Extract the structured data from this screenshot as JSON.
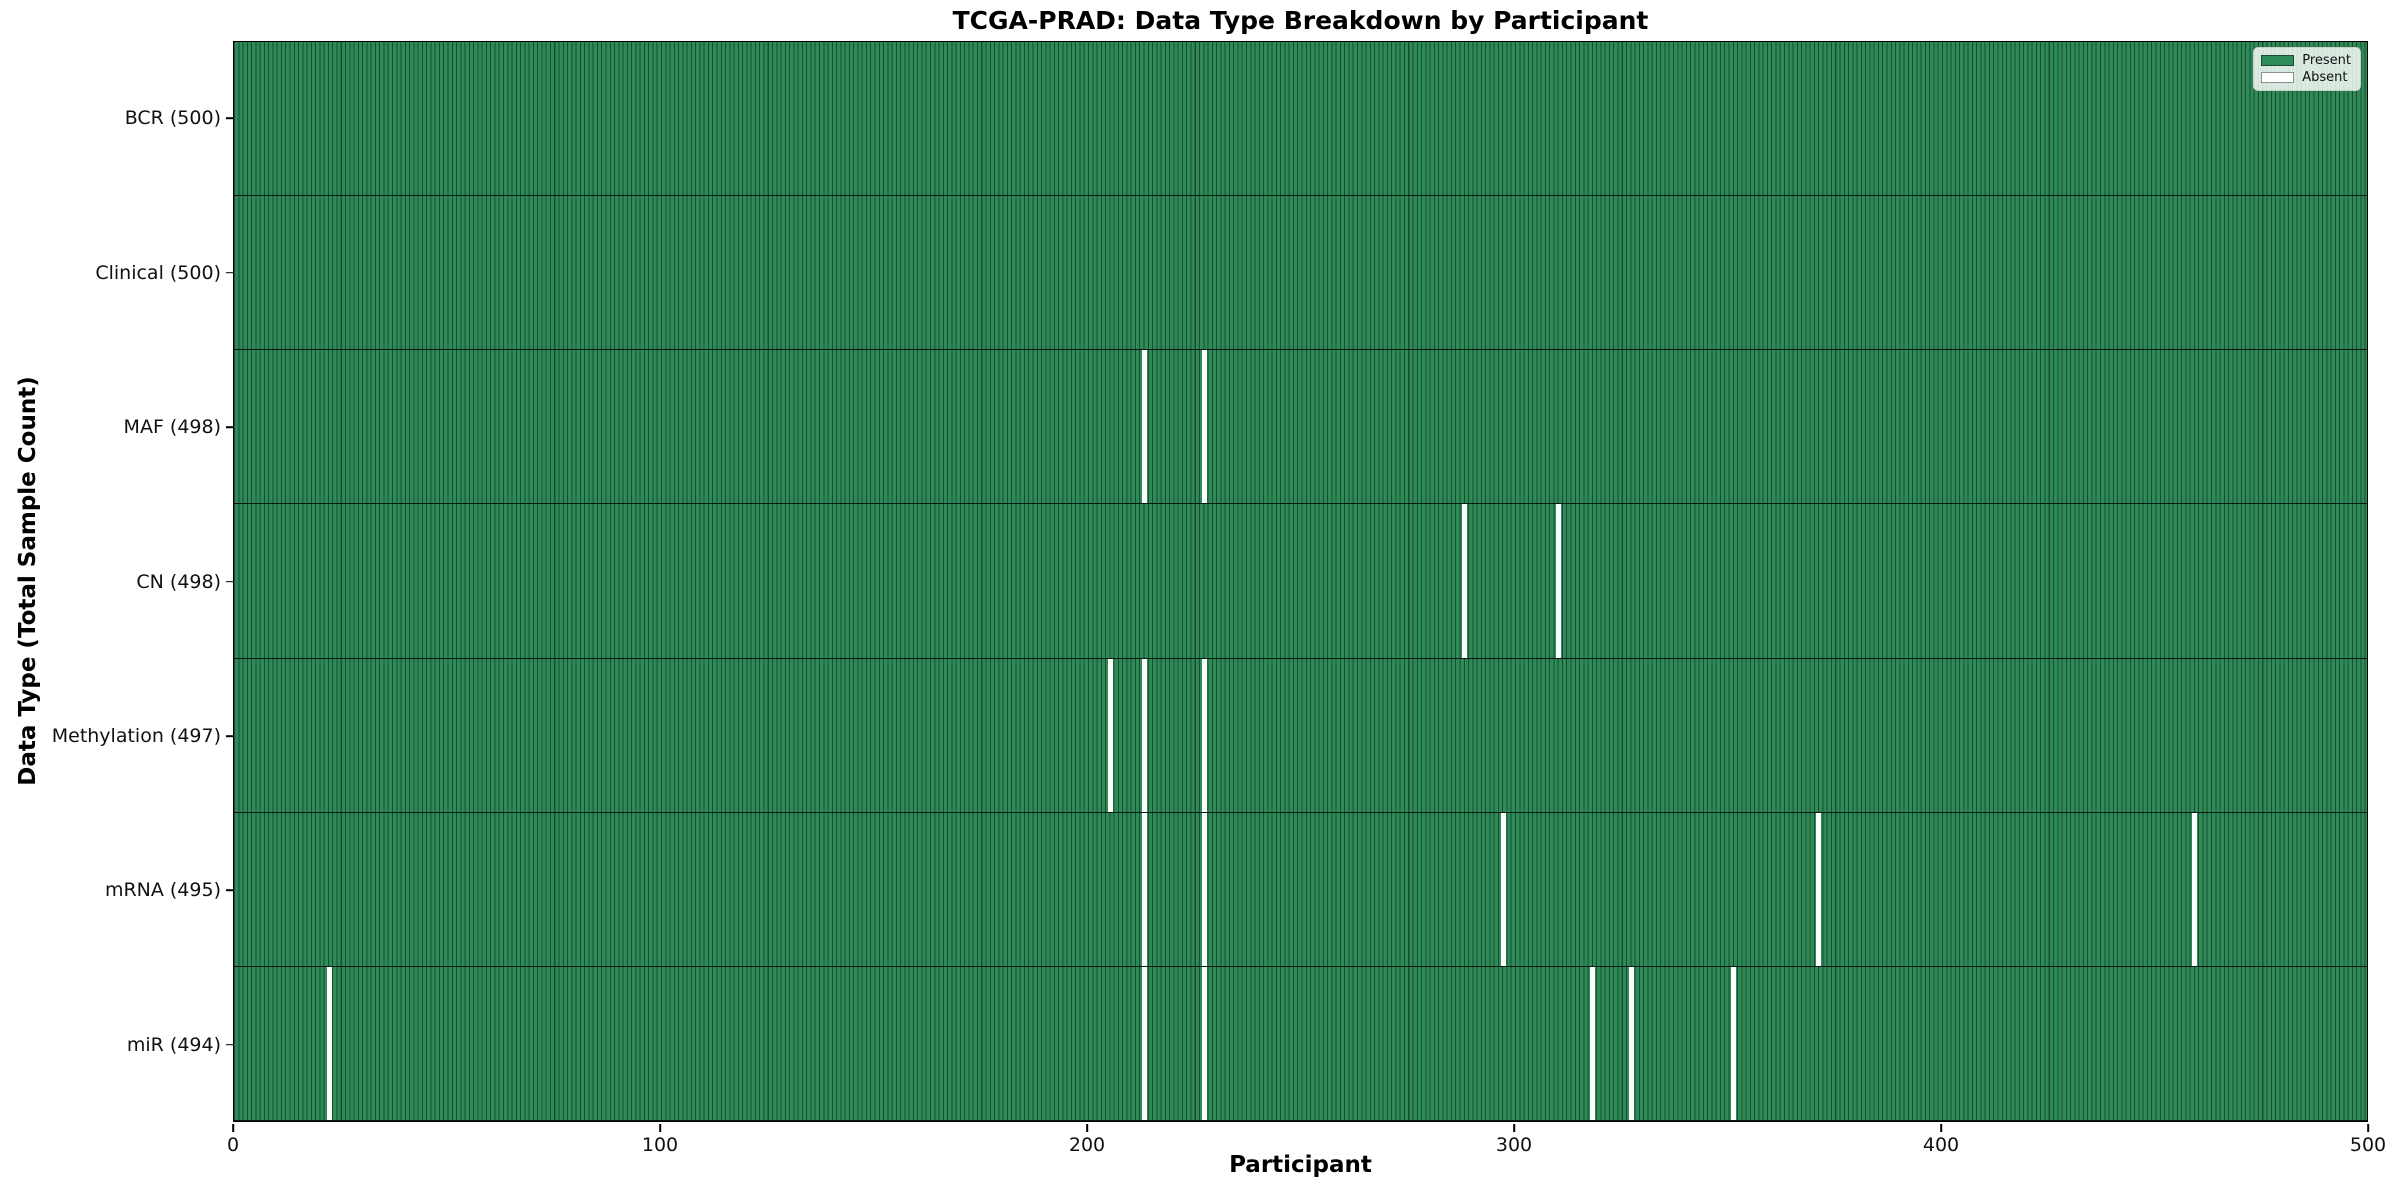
{
  "title": "TCGA-PRAD: Data Type Breakdown by Participant",
  "axes": {
    "xlabel": "Participant",
    "ylabel": "Data Type (Total Sample Count)"
  },
  "legend": {
    "items": [
      {
        "label": "Present",
        "color": "#2E8B57"
      },
      {
        "label": "Absent",
        "color": "#FFFFFF"
      }
    ]
  },
  "chart_data": {
    "type": "heatmap",
    "title": "TCGA-PRAD: Data Type Breakdown by Participant",
    "xlabel": "Participant",
    "ylabel": "Data Type (Total Sample Count)",
    "xlim": [
      0,
      500
    ],
    "x_ticks": [
      0,
      100,
      200,
      300,
      400,
      500
    ],
    "n_participants": 500,
    "legend_entries": [
      "Present",
      "Absent"
    ],
    "legend_position": "upper right",
    "colors": {
      "present": "#2E8B57",
      "absent": "#FFFFFF",
      "bar_edge_overlay": "rgba(0,0,0,0.45)"
    },
    "rows": [
      {
        "label": "BCR (500)",
        "data_type": "BCR",
        "present_count": 500,
        "absent_participants": []
      },
      {
        "label": "Clinical (500)",
        "data_type": "Clinical",
        "present_count": 500,
        "absent_participants": []
      },
      {
        "label": "MAF (498)",
        "data_type": "MAF",
        "present_count": 498,
        "absent_participants": [
          213,
          227
        ]
      },
      {
        "label": "CN (498)",
        "data_type": "CN",
        "present_count": 498,
        "absent_participants": [
          288,
          310
        ]
      },
      {
        "label": "Methylation (497)",
        "data_type": "Methylation",
        "present_count": 497,
        "absent_participants": [
          205,
          213,
          227
        ]
      },
      {
        "label": "mRNA (495)",
        "data_type": "mRNA",
        "present_count": 495,
        "absent_participants": [
          213,
          227,
          297,
          371,
          459
        ]
      },
      {
        "label": "miR (494)",
        "data_type": "miR",
        "present_count": 494,
        "absent_participants": [
          22,
          213,
          227,
          318,
          327,
          351
        ]
      }
    ]
  }
}
